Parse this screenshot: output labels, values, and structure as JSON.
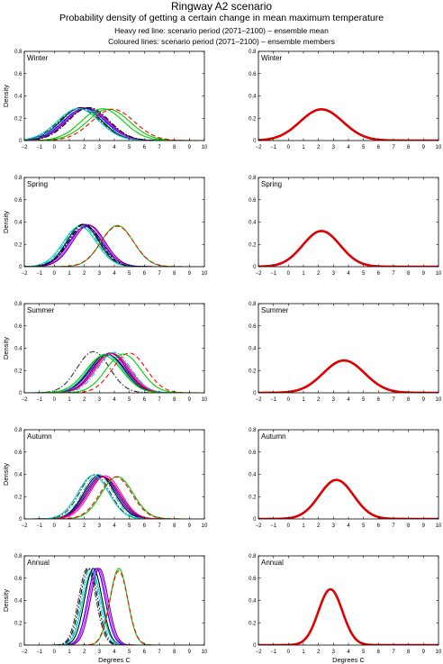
{
  "header": {
    "title": "Ringway A2 scenario",
    "subtitle": "Probability density of getting a certain change in mean maximum temperature",
    "note_red": "Heavy red line: scenario period (2071–2100) – ensemble mean",
    "note_colour": "Coloured lines: scenario period (2071–2100) – ensemble members"
  },
  "chart_data": {
    "type": "line",
    "xlim": [
      -2,
      10
    ],
    "xticks": [
      -2,
      -1,
      0,
      1,
      2,
      3,
      4,
      5,
      6,
      7,
      8,
      9,
      10
    ],
    "ylim": [
      0,
      0.8
    ],
    "yticks": [
      0,
      0.2,
      0.4,
      0.6,
      0.8
    ],
    "ylabel": "Density",
    "xlabel": "Degrees C",
    "grid": false,
    "ensemble_colors": [
      "#000000",
      "#00cc00",
      "#0000ff",
      "#ff00ff",
      "#00cccc",
      "#ff0000",
      "#660099",
      "#333333"
    ],
    "ensemble_mean_color": "#dd0000",
    "panels": [
      {
        "season": "Winter",
        "ensemble_mean": {
          "mean": 2.2,
          "sd": 1.42,
          "peak": 0.28
        },
        "ensemble_members": [
          {
            "mean": 1.8,
            "sd": 1.35,
            "color": "#000000",
            "dash": "solid"
          },
          {
            "mean": 2.0,
            "sd": 1.38,
            "color": "#0000ff",
            "dash": "solid"
          },
          {
            "mean": 1.9,
            "sd": 1.4,
            "color": "#00cccc",
            "dash": "dashdot"
          },
          {
            "mean": 2.1,
            "sd": 1.36,
            "color": "#ff00ff",
            "dash": "solid"
          },
          {
            "mean": 1.7,
            "sd": 1.4,
            "color": "#333333",
            "dash": "dashdot"
          },
          {
            "mean": 2.2,
            "sd": 1.37,
            "color": "#660099",
            "dash": "solid"
          },
          {
            "mean": 1.6,
            "sd": 1.39,
            "color": "#00cccc",
            "dash": "solid"
          },
          {
            "mean": 2.3,
            "sd": 1.35,
            "color": "#000000",
            "dash": "dashdot"
          },
          {
            "mean": 3.2,
            "sd": 1.4,
            "color": "#00cc00",
            "dash": "solid"
          },
          {
            "mean": 3.6,
            "sd": 1.42,
            "color": "#00cc00",
            "dash": "solid"
          },
          {
            "mean": 3.9,
            "sd": 1.42,
            "color": "#ff0000",
            "dash": "dashed"
          }
        ]
      },
      {
        "season": "Spring",
        "ensemble_mean": {
          "mean": 2.2,
          "sd": 1.24,
          "peak": 0.32
        },
        "ensemble_members": [
          {
            "mean": 1.9,
            "sd": 1.05,
            "color": "#000000",
            "dash": "solid"
          },
          {
            "mean": 2.1,
            "sd": 1.1,
            "color": "#0000ff",
            "dash": "solid"
          },
          {
            "mean": 1.8,
            "sd": 1.08,
            "color": "#00cccc",
            "dash": "dashdot"
          },
          {
            "mean": 2.2,
            "sd": 1.06,
            "color": "#ff00ff",
            "dash": "solid"
          },
          {
            "mean": 2.0,
            "sd": 1.12,
            "color": "#333333",
            "dash": "dashdot"
          },
          {
            "mean": 1.7,
            "sd": 1.1,
            "color": "#00cccc",
            "dash": "solid"
          },
          {
            "mean": 2.3,
            "sd": 1.07,
            "color": "#660099",
            "dash": "solid"
          },
          {
            "mean": 2.0,
            "sd": 1.05,
            "color": "#000000",
            "dash": "dashdot"
          },
          {
            "mean": 4.2,
            "sd": 1.08,
            "color": "#00cc00",
            "dash": "solid"
          },
          {
            "mean": 4.2,
            "sd": 1.1,
            "color": "#ff0000",
            "dash": "dashed"
          }
        ]
      },
      {
        "season": "Summer",
        "ensemble_mean": {
          "mean": 3.7,
          "sd": 1.38,
          "peak": 0.29
        },
        "ensemble_members": [
          {
            "mean": 2.6,
            "sd": 1.08,
            "color": "#333333",
            "dash": "dashdot"
          },
          {
            "mean": 3.5,
            "sd": 1.15,
            "color": "#000000",
            "dash": "solid"
          },
          {
            "mean": 3.7,
            "sd": 1.12,
            "color": "#0000ff",
            "dash": "solid"
          },
          {
            "mean": 3.9,
            "sd": 1.14,
            "color": "#ff00ff",
            "dash": "solid"
          },
          {
            "mean": 3.6,
            "sd": 1.18,
            "color": "#660099",
            "dash": "solid"
          },
          {
            "mean": 3.4,
            "sd": 1.15,
            "color": "#00cccc",
            "dash": "solid"
          },
          {
            "mean": 3.8,
            "sd": 1.12,
            "color": "#ff0000",
            "dash": "solid"
          },
          {
            "mean": 3.3,
            "sd": 1.2,
            "color": "#00cc00",
            "dash": "solid"
          },
          {
            "mean": 4.0,
            "sd": 1.1,
            "color": "#00cccc",
            "dash": "dashdot"
          },
          {
            "mean": 5.0,
            "sd": 1.12,
            "color": "#ff0000",
            "dash": "dashed"
          },
          {
            "mean": 4.6,
            "sd": 1.15,
            "color": "#00cc00",
            "dash": "solid"
          }
        ]
      },
      {
        "season": "Autumn",
        "ensemble_mean": {
          "mean": 3.2,
          "sd": 1.14,
          "peak": 0.35
        },
        "ensemble_members": [
          {
            "mean": 2.7,
            "sd": 1.0,
            "color": "#333333",
            "dash": "dashdot"
          },
          {
            "mean": 3.0,
            "sd": 1.02,
            "color": "#000000",
            "dash": "solid"
          },
          {
            "mean": 3.2,
            "sd": 1.05,
            "color": "#0000ff",
            "dash": "solid"
          },
          {
            "mean": 3.4,
            "sd": 1.03,
            "color": "#ff00ff",
            "dash": "solid"
          },
          {
            "mean": 3.1,
            "sd": 1.04,
            "color": "#660099",
            "dash": "solid"
          },
          {
            "mean": 2.9,
            "sd": 1.0,
            "color": "#00cccc",
            "dash": "dashdot"
          },
          {
            "mean": 3.3,
            "sd": 1.06,
            "color": "#ff0000",
            "dash": "solid"
          },
          {
            "mean": 2.6,
            "sd": 1.02,
            "color": "#00cccc",
            "dash": "solid"
          },
          {
            "mean": 4.2,
            "sd": 1.05,
            "color": "#00cc00",
            "dash": "solid"
          },
          {
            "mean": 4.1,
            "sd": 1.06,
            "color": "#ff0000",
            "dash": "dashed"
          }
        ]
      },
      {
        "season": "Annual",
        "ensemble_mean": {
          "mean": 2.8,
          "sd": 0.8,
          "peak": 0.5
        },
        "ensemble_members": [
          {
            "mean": 2.2,
            "sd": 0.58,
            "color": "#333333",
            "dash": "dashdot"
          },
          {
            "mean": 2.4,
            "sd": 0.58,
            "color": "#00cccc",
            "dash": "dashdot"
          },
          {
            "mean": 2.6,
            "sd": 0.58,
            "color": "#000000",
            "dash": "solid"
          },
          {
            "mean": 2.8,
            "sd": 0.58,
            "color": "#0000ff",
            "dash": "solid"
          },
          {
            "mean": 2.9,
            "sd": 0.58,
            "color": "#ff00ff",
            "dash": "solid"
          },
          {
            "mean": 3.0,
            "sd": 0.58,
            "color": "#660099",
            "dash": "solid"
          },
          {
            "mean": 2.5,
            "sd": 0.6,
            "color": "#00cccc",
            "dash": "solid"
          },
          {
            "mean": 2.3,
            "sd": 0.58,
            "color": "#000000",
            "dash": "dashdot"
          },
          {
            "mean": 4.3,
            "sd": 0.58,
            "color": "#00cc00",
            "dash": "solid"
          },
          {
            "mean": 4.3,
            "sd": 0.6,
            "color": "#ff0000",
            "dash": "dashed"
          }
        ]
      }
    ]
  }
}
